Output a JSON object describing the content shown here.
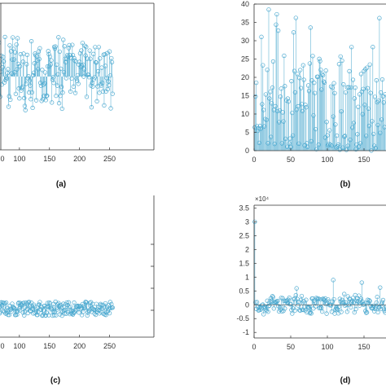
{
  "colors": {
    "stem": "#4aa8cf",
    "marker": "#4aa8cf",
    "axis": "#333333"
  },
  "chart_data": [
    {
      "id": "a",
      "type": "stem",
      "panel_label": "(a)",
      "x_ticks": [
        "0",
        "100",
        "150",
        "200",
        "250"
      ],
      "y_ticks": [],
      "exponent_label": "",
      "xlim": [
        0,
        256
      ],
      "ylim": [
        0,
        100
      ],
      "baseline": 50,
      "seed": 11,
      "spread": 14,
      "n": 256
    },
    {
      "id": "b",
      "type": "stem",
      "panel_label": "(b)",
      "x_ticks": [
        "0",
        "50",
        "100",
        "150"
      ],
      "y_ticks": [
        "0",
        "5",
        "10",
        "15",
        "20",
        "25",
        "30",
        "35",
        "40"
      ],
      "exponent_label": "",
      "xlim": [
        0,
        180
      ],
      "ylim": [
        0,
        40
      ],
      "baseline": 0,
      "seed": 23,
      "spread": 0,
      "n": 180
    },
    {
      "id": "c",
      "type": "stem",
      "panel_label": "(c)",
      "x_ticks": [
        "0",
        "100",
        "150",
        "200",
        "250"
      ],
      "y_ticks": [],
      "exponent_label": "",
      "xlim": [
        0,
        256
      ],
      "ylim": [
        0,
        100
      ],
      "baseline": 20,
      "seed": 37,
      "spread": 5,
      "n": 256
    },
    {
      "id": "d",
      "type": "stem",
      "panel_label": "(d)",
      "x_ticks": [
        "0",
        "50",
        "100",
        "150"
      ],
      "y_ticks": [
        "-1",
        "-0.5",
        "0",
        "0.5",
        "1",
        "1.5",
        "2",
        "2.5",
        "3",
        "3.5"
      ],
      "exponent_label": "×10⁴",
      "xlim": [
        0,
        180
      ],
      "ylim": [
        -1.2,
        3.6
      ],
      "baseline": 0,
      "seed": 53,
      "spread": 0.2,
      "n": 180
    }
  ]
}
